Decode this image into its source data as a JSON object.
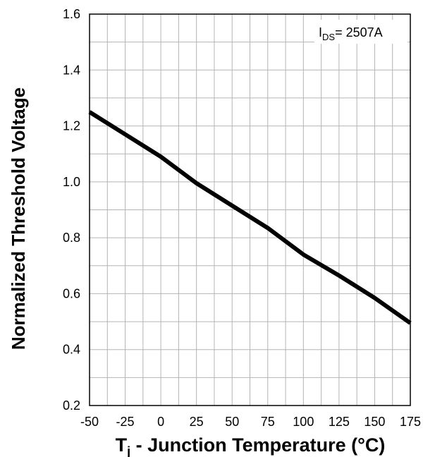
{
  "chart_data": {
    "type": "line",
    "title": "",
    "xlabel_main": "T",
    "xlabel_sub": "j",
    "xlabel_rest": " - Junction Temperature (°C)",
    "ylabel": "Normalized Threshold Voltage",
    "xlim": [
      -50,
      175
    ],
    "ylim": [
      0.2,
      1.6
    ],
    "x_ticks": [
      "-50",
      "-25",
      "0",
      "25",
      "50",
      "75",
      "100",
      "125",
      "150",
      "175"
    ],
    "y_ticks": [
      "0.2",
      "0.4",
      "0.6",
      "0.8",
      "1.0",
      "1.2",
      "1.4",
      "1.6"
    ],
    "grid": true,
    "legend_annotation": {
      "text_main": "I",
      "text_sub": "DS",
      "text_rest": "= 2507A",
      "placement": "top-right"
    },
    "series": [
      {
        "x": [
          -50,
          -25,
          0,
          25,
          50,
          75,
          100,
          125,
          150,
          175
        ],
        "y": [
          1.25,
          1.17,
          1.09,
          0.995,
          0.915,
          0.835,
          0.74,
          0.665,
          0.585,
          0.495
        ]
      }
    ],
    "line_color": "#000000",
    "grid_color": "#b4b4b4"
  }
}
